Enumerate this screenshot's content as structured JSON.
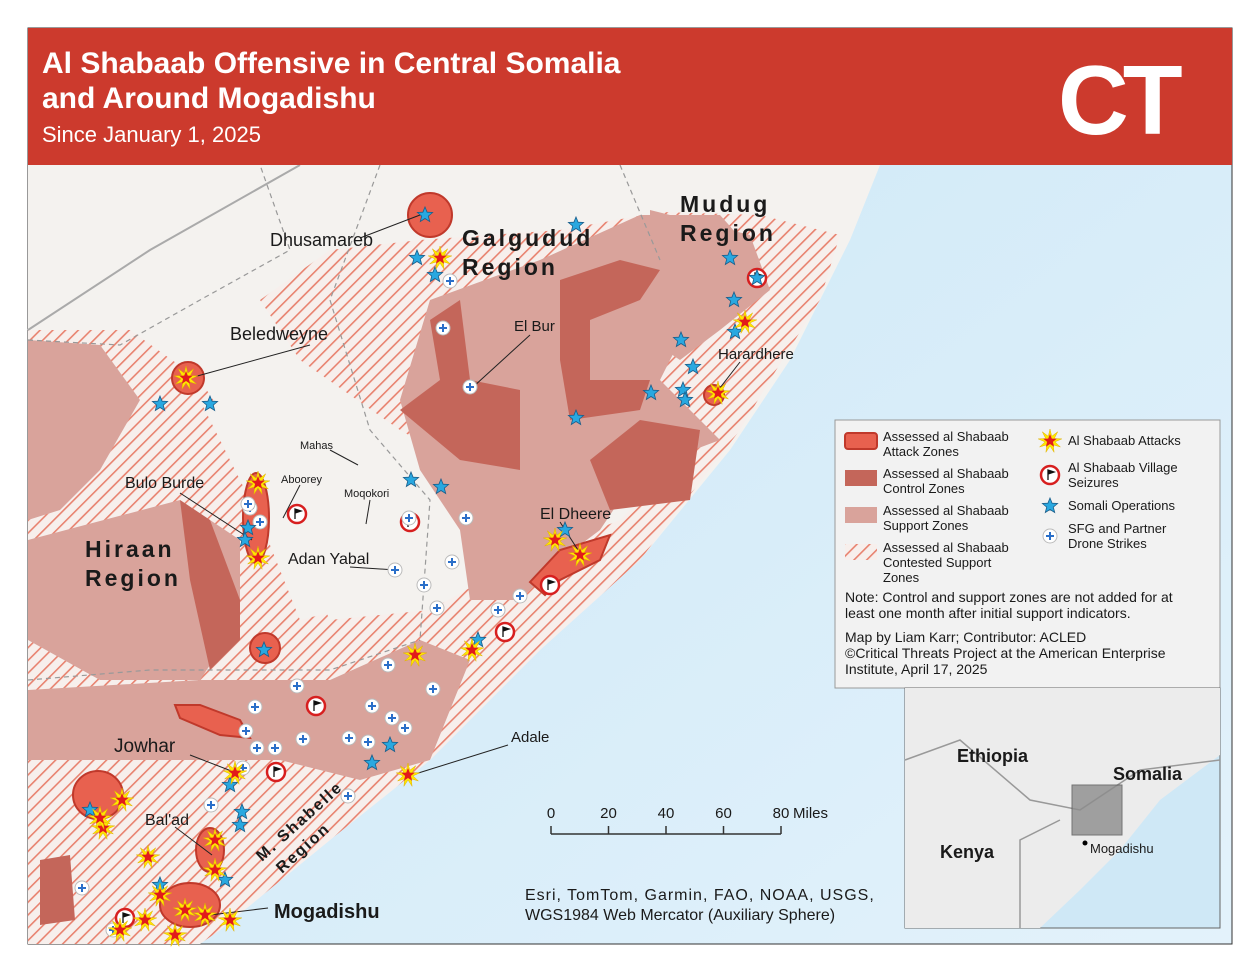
{
  "header": {
    "title": [
      "Al Shabaab Offensive in Central Somalia",
      "and Around Mogadishu"
    ],
    "subtitle": "Since January 1, 2025",
    "logo": "CT"
  },
  "map": {
    "regions": [
      {
        "label": [
          "Mudug",
          "Region"
        ]
      },
      {
        "label": [
          "Galgudud",
          "Region"
        ]
      },
      {
        "label": [
          "Hiraan",
          "Region"
        ]
      },
      {
        "label": [
          "M. Shabelle",
          "Region"
        ]
      }
    ],
    "places": [
      "Dhusamareb",
      "Beledweyne",
      "El Bur",
      "Harardhere",
      "Mahas",
      "Aboorey",
      "Moqokori",
      "Bulo Burde",
      "El Dheere",
      "Adan Yabal",
      "Adale",
      "Jowhar",
      "Bal'ad",
      "Mogadishu"
    ]
  },
  "legend": {
    "items": [
      {
        "label": [
          "Assessed al Shabaab",
          "Attack Zones"
        ]
      },
      {
        "label": [
          "Assessed al Shabaab",
          "Control Zones"
        ]
      },
      {
        "label": [
          "Assessed al Shabaab",
          "Support Zones"
        ]
      },
      {
        "label": [
          "Assessed al Shabaab",
          "Contested Support",
          "Zones"
        ]
      },
      {
        "label": [
          "Al Shabaab Attacks"
        ]
      },
      {
        "label": [
          "Al Shabaab Village",
          "Seizures"
        ]
      },
      {
        "label": [
          "Somali Operations"
        ]
      },
      {
        "label": [
          "SFG and Partner",
          "Drone Strikes"
        ]
      }
    ],
    "note": [
      "Note: Control and support zones are not added for at",
      "least one month after initial support indicators."
    ],
    "credit": [
      "Map by Liam Karr; Contributor: ACLED",
      "©Critical Threats Project at the American Enterprise",
      "Institute, April 17, 2025"
    ]
  },
  "scale": {
    "ticks": [
      0,
      20,
      40,
      60,
      80
    ],
    "unit": "Miles"
  },
  "attribution": [
    "Esri, TomTom, Garmin, FAO, NOAA, USGS,",
    "WGS1984 Web Mercator (Auxiliary Sphere)"
  ],
  "inset": {
    "labels": [
      "Ethiopia",
      "Somalia",
      "Kenya",
      "Mogadishu"
    ]
  }
}
